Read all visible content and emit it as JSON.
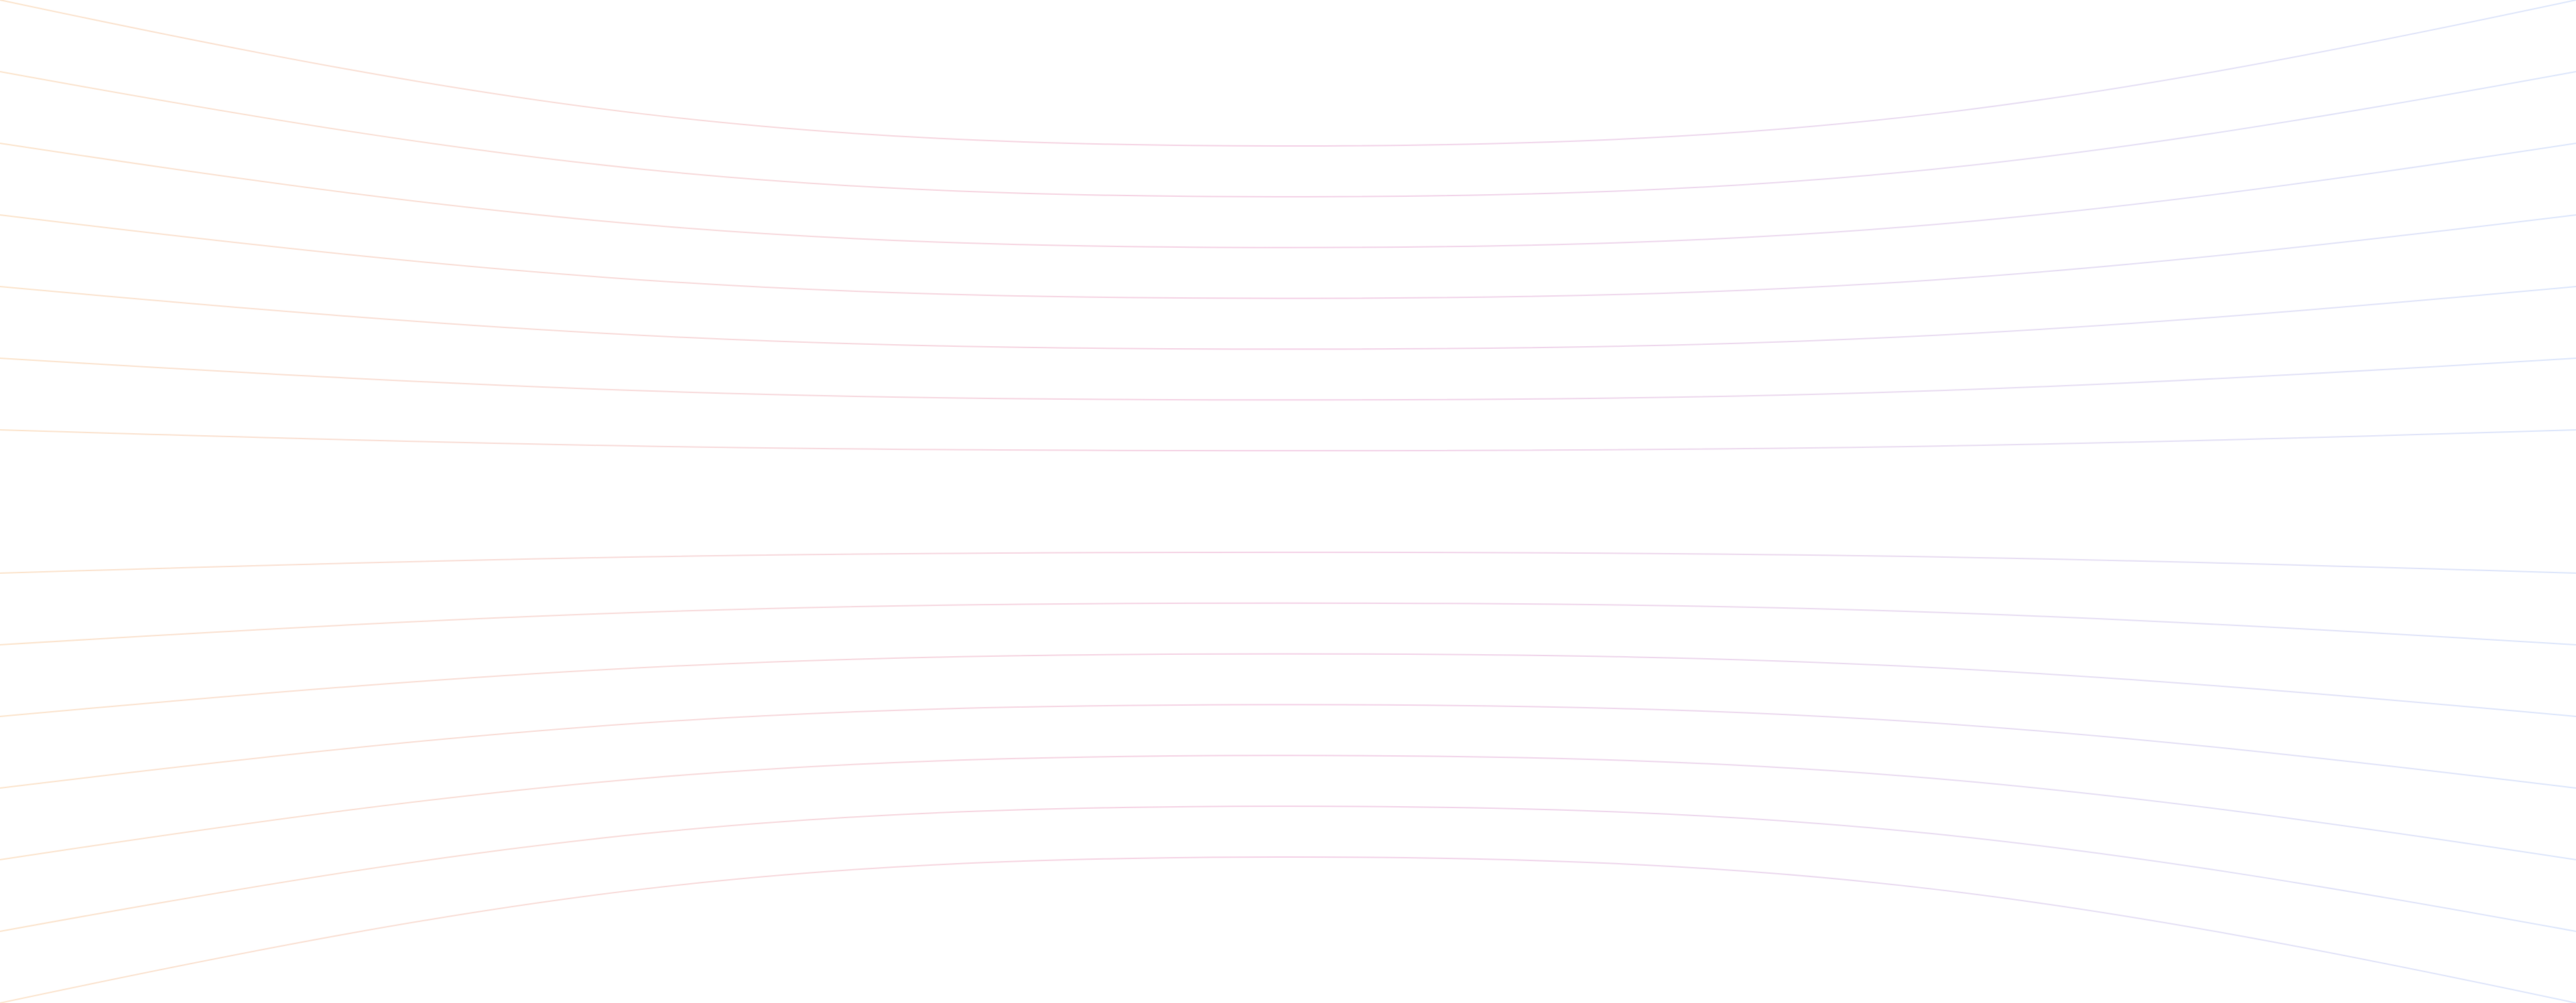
{
  "background": {
    "pattern": "curved-lines",
    "line_count": 15,
    "colors": {
      "background": "#ffffff",
      "gradient_left": "#fbe4cc",
      "gradient_middle": "#f4d0e6",
      "gradient_right": "#dce6fb"
    }
  }
}
